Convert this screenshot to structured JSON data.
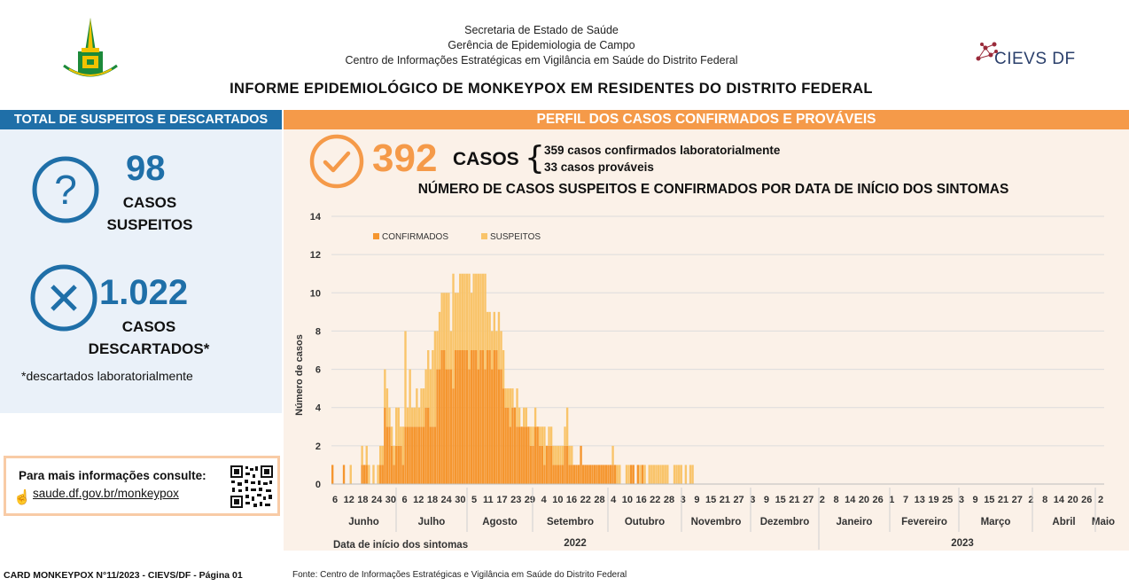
{
  "header": {
    "line1": "Secretaria de Estado de Saúde",
    "line2": "Gerência de Epidemiologia de Campo",
    "line3": "Centro de Informações Estratégicas em Vigilância em Saúde do Distrito Federal",
    "cievs_logo_text": "CIEVS DF",
    "title": "INFORME EPIDEMIOLÓGICO DE MONKEYPOX EM RESIDENTES DO DISTRITO FEDERAL"
  },
  "left": {
    "bar_title": "TOTAL DE SUSPEITOS E DESCARTADOS",
    "suspects_value": "98",
    "suspects_label1": "CASOS",
    "suspects_label2": "SUSPEITOS",
    "discarded_value": "1.022",
    "discarded_label1": "CASOS",
    "discarded_label2": "DESCARTADOS*",
    "footnote": "*descartados laboratorialmente",
    "info_title": "Para mais informações consulte:",
    "info_link": "saude.df.gov.br/monkeypox"
  },
  "right": {
    "bar_title": "PERFIL DOS CASOS CONFIRMADOS E PROVÁVEIS",
    "cases_value": "392",
    "cases_label": "CASOS",
    "confirmed_text": "359 casos confirmados laboratorialmente",
    "probable_text": "33 casos prováveis"
  },
  "footer": {
    "card": "CARD MONKEYPOX N°11/2023 - CIEVS/DF - Página 01",
    "source": "Fonte: Centro de Informações Estratégicas e Vigilância em Saúde do Distrito Federal"
  },
  "colors": {
    "blue": "#1f6fa8",
    "orange": "#f59a49",
    "confirmed": "#f5962f",
    "suspected": "#f9c46a"
  },
  "icons": {
    "suspects": "question-circle-icon",
    "discarded": "x-circle-icon",
    "cases": "check-circle-icon",
    "info": "hand-pointer-icon"
  },
  "chart_data": {
    "type": "bar",
    "stacked": true,
    "title": "NÚMERO DE CASOS SUSPEITOS E CONFIRMADOS POR DATA DE INÍCIO DOS SINTOMAS",
    "xlabel": "Data de início dos sintomas",
    "ylabel": "Número de casos",
    "ylim": [
      0,
      14
    ],
    "yticks": [
      0,
      2,
      4,
      6,
      8,
      10,
      12,
      14
    ],
    "grid": true,
    "legend_position": "top-left",
    "series": [
      {
        "name": "CONFIRMADOS",
        "values": [
          1,
          0,
          0,
          0,
          0,
          1,
          0,
          0,
          0,
          0,
          0,
          0,
          0,
          1,
          1,
          1,
          0,
          0,
          0,
          0,
          0,
          1,
          1,
          4,
          3,
          3,
          2,
          1,
          2,
          2,
          2,
          1,
          3,
          3,
          3,
          3,
          3,
          3,
          3,
          3,
          3,
          4,
          4,
          3,
          3,
          3,
          6,
          6,
          7,
          7,
          6,
          6,
          6,
          5,
          7,
          7,
          7,
          7,
          7,
          7,
          6,
          7,
          7,
          7,
          6,
          7,
          7,
          6,
          7,
          7,
          6,
          7,
          7,
          6,
          6,
          5,
          4,
          4,
          3,
          4,
          4,
          3,
          3,
          3,
          3,
          3,
          3,
          2,
          2,
          3,
          3,
          2,
          2,
          1,
          2,
          2,
          2,
          1,
          1,
          1,
          1,
          1,
          2,
          2,
          1,
          1,
          1,
          1,
          1,
          2,
          1,
          1,
          1,
          1,
          1,
          1,
          1,
          1,
          1,
          1,
          1,
          1,
          1,
          1,
          1,
          0,
          0,
          0,
          0,
          0,
          0,
          1,
          1,
          0,
          1,
          0,
          1,
          0,
          0,
          0,
          0,
          0,
          0,
          0,
          0,
          0,
          0,
          0,
          0,
          0,
          0,
          0,
          0,
          0,
          0,
          0,
          0,
          0,
          0,
          0,
          0,
          0,
          0,
          0,
          0,
          0,
          0,
          0,
          0,
          0,
          0,
          0,
          0,
          0,
          0,
          0,
          0,
          0,
          0,
          0,
          0,
          0,
          0,
          0,
          0,
          0,
          0,
          0,
          0,
          0,
          0,
          0,
          0,
          0,
          0,
          0,
          0,
          0,
          0,
          0,
          0,
          0,
          0,
          0,
          0,
          0,
          0,
          0,
          0,
          0,
          0,
          0,
          0,
          0,
          0,
          0,
          0,
          0,
          0,
          0,
          0,
          0,
          0,
          0,
          0,
          0,
          0,
          0,
          0,
          0,
          0,
          0,
          0,
          0,
          0,
          0,
          0,
          0,
          0,
          0,
          0,
          0,
          0,
          0,
          0,
          0,
          0,
          0,
          0,
          0,
          0,
          0,
          0,
          0,
          0,
          0,
          0,
          0,
          0,
          0,
          0,
          0,
          0,
          0,
          0,
          0,
          0,
          0,
          0,
          0,
          0,
          0,
          0,
          0,
          0,
          0,
          0,
          0,
          0,
          0,
          0,
          0,
          0,
          0,
          0,
          0,
          0,
          0,
          0,
          0,
          0,
          0,
          0,
          0,
          0,
          0,
          0,
          0,
          0,
          0,
          0,
          0,
          0,
          0,
          0,
          0,
          0,
          0,
          0,
          0,
          0,
          0,
          0,
          0,
          0,
          0,
          0,
          0,
          0,
          0,
          0,
          0,
          0,
          0,
          0,
          0,
          0,
          0,
          0,
          0,
          0,
          0,
          0,
          0,
          0,
          0,
          0,
          0,
          0
        ]
      },
      {
        "name": "SUSPEITOS",
        "values": [
          0,
          0,
          0,
          0,
          0,
          0,
          0,
          0,
          1,
          0,
          0,
          0,
          0,
          1,
          0,
          1,
          1,
          0,
          1,
          0,
          1,
          1,
          1,
          2,
          2,
          1,
          1,
          1,
          2,
          2,
          1,
          2,
          5,
          1,
          3,
          1,
          1,
          2,
          1,
          2,
          2,
          2,
          3,
          3,
          4,
          5,
          2,
          3,
          3,
          3,
          4,
          4,
          2,
          6,
          3,
          3,
          4,
          4,
          4,
          4,
          5,
          3,
          4,
          4,
          5,
          4,
          4,
          5,
          2,
          2,
          2,
          2,
          1,
          3,
          2,
          2,
          1,
          1,
          2,
          1,
          0,
          2,
          1,
          0,
          1,
          1,
          0,
          1,
          1,
          1,
          0,
          1,
          1,
          2,
          0,
          1,
          1,
          1,
          1,
          1,
          1,
          1,
          1,
          2,
          1,
          1,
          0,
          0,
          0,
          0,
          0,
          0,
          0,
          0,
          0,
          0,
          0,
          0,
          0,
          0,
          0,
          0,
          0,
          1,
          0,
          1,
          1,
          0,
          0,
          1,
          1,
          0,
          0,
          0,
          0,
          1,
          0,
          1,
          0,
          1,
          1,
          1,
          1,
          1,
          1,
          1,
          1,
          1,
          0,
          0,
          1,
          1,
          1,
          1,
          0,
          1,
          0,
          1,
          1,
          0,
          0,
          0,
          0,
          0,
          0,
          0,
          0,
          0,
          0,
          0,
          0,
          0,
          0,
          0,
          0,
          0,
          0,
          0,
          0,
          0,
          0,
          0,
          0,
          0,
          0,
          0,
          0,
          0,
          0,
          0,
          0,
          0,
          0,
          0,
          0,
          0,
          0,
          0,
          0,
          0,
          0,
          0,
          0,
          0,
          0,
          0,
          0,
          0,
          0,
          0,
          0,
          0,
          0,
          0,
          0,
          0,
          0,
          0,
          0,
          0,
          0,
          0,
          0,
          0,
          0,
          0,
          0,
          0,
          0,
          0,
          0,
          0,
          0,
          0,
          0,
          0,
          0,
          0,
          0,
          0,
          0,
          0,
          0,
          0,
          0,
          0,
          0,
          0,
          0,
          0,
          0,
          0,
          0,
          0,
          0,
          0,
          0,
          0,
          0,
          0,
          0,
          0,
          0,
          0,
          0,
          0,
          0,
          0,
          0,
          0,
          0,
          0,
          0,
          0,
          0,
          0,
          0,
          0,
          0,
          0,
          0,
          0,
          0,
          0,
          0,
          0,
          0,
          0,
          0,
          0,
          0,
          0,
          0,
          0,
          0,
          0,
          0,
          0,
          0,
          0,
          0,
          0,
          0,
          0,
          0,
          0,
          0,
          0,
          0,
          0,
          0,
          0
        ]
      }
    ],
    "day_ticks": [
      "6",
      "12",
      "18",
      "24",
      "30",
      "6",
      "12",
      "18",
      "24",
      "30",
      "5",
      "11",
      "17",
      "23",
      "29",
      "4",
      "10",
      "16",
      "22",
      "28",
      "4",
      "10",
      "16",
      "22",
      "28",
      "3",
      "9",
      "15",
      "21",
      "27",
      "3",
      "9",
      "15",
      "21",
      "27",
      "2",
      "8",
      "14",
      "20",
      "26",
      "1",
      "7",
      "13",
      "19",
      "25",
      "3",
      "9",
      "15",
      "21",
      "27",
      "2",
      "8",
      "14",
      "20",
      "26",
      "2"
    ],
    "months": [
      "Junho",
      "Julho",
      "Agosto",
      "Setembro",
      "Outubro",
      "Novembro",
      "Dezembro",
      "Janeiro",
      "Fevereiro",
      "Março",
      "Abril",
      "Maio"
    ],
    "years": [
      "2022",
      "2023"
    ]
  }
}
